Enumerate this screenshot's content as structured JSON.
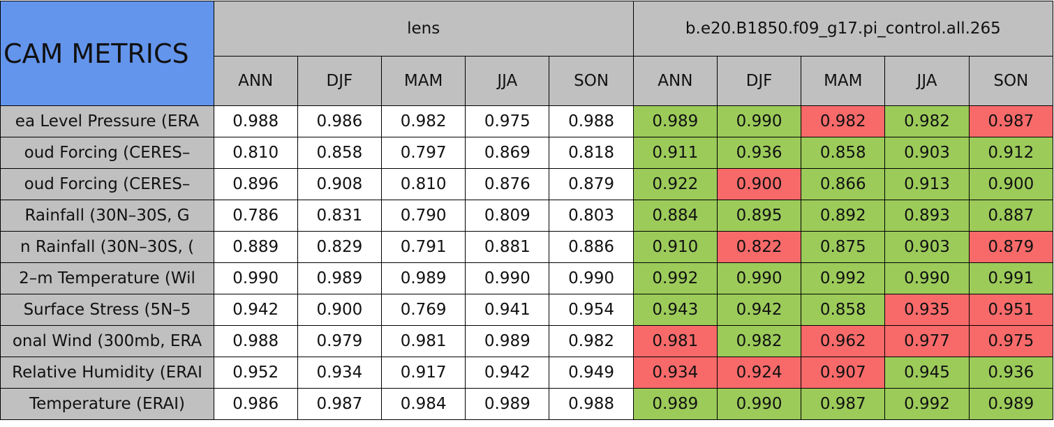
{
  "table": {
    "corner": "CAM METRICS",
    "groups": [
      "lens",
      "b.e20.B1850.f09_g17.pi_control.all.265"
    ],
    "columns": [
      "ANN",
      "DJF",
      "MAM",
      "JJA",
      "SON",
      "ANN",
      "DJF",
      "MAM",
      "JJA",
      "SON"
    ],
    "header_color": "#c0c0c0",
    "corner_color": "#6495ed",
    "rows": [
      {
        "label": "ea Level Pressure (ERA",
        "values": [
          "0.988",
          "0.986",
          "0.982",
          "0.975",
          "0.988",
          "0.989",
          "0.990",
          "0.982",
          "0.982",
          "0.987"
        ],
        "colors": [
          "#ffffff",
          "#ffffff",
          "#ffffff",
          "#ffffff",
          "#ffffff",
          "#9ccb5a",
          "#9ccb5a",
          "#f86a6a",
          "#9ccb5a",
          "#f86a6a"
        ]
      },
      {
        "label": "oud Forcing (CERES–",
        "values": [
          "0.810",
          "0.858",
          "0.797",
          "0.869",
          "0.818",
          "0.911",
          "0.936",
          "0.858",
          "0.903",
          "0.912"
        ],
        "colors": [
          "#ffffff",
          "#ffffff",
          "#ffffff",
          "#ffffff",
          "#ffffff",
          "#9ccb5a",
          "#9ccb5a",
          "#9ccb5a",
          "#9ccb5a",
          "#9ccb5a"
        ]
      },
      {
        "label": "oud Forcing (CERES–",
        "values": [
          "0.896",
          "0.908",
          "0.810",
          "0.876",
          "0.879",
          "0.922",
          "0.900",
          "0.866",
          "0.913",
          "0.900"
        ],
        "colors": [
          "#ffffff",
          "#ffffff",
          "#ffffff",
          "#ffffff",
          "#ffffff",
          "#9ccb5a",
          "#f86a6a",
          "#9ccb5a",
          "#9ccb5a",
          "#9ccb5a"
        ]
      },
      {
        "label": "Rainfall (30N–30S, G",
        "values": [
          "0.786",
          "0.831",
          "0.790",
          "0.809",
          "0.803",
          "0.884",
          "0.895",
          "0.892",
          "0.893",
          "0.887"
        ],
        "colors": [
          "#ffffff",
          "#ffffff",
          "#ffffff",
          "#ffffff",
          "#ffffff",
          "#9ccb5a",
          "#9ccb5a",
          "#9ccb5a",
          "#9ccb5a",
          "#9ccb5a"
        ]
      },
      {
        "label": "n Rainfall (30N–30S, (",
        "values": [
          "0.889",
          "0.829",
          "0.791",
          "0.881",
          "0.886",
          "0.910",
          "0.822",
          "0.875",
          "0.903",
          "0.879"
        ],
        "colors": [
          "#ffffff",
          "#ffffff",
          "#ffffff",
          "#ffffff",
          "#ffffff",
          "#9ccb5a",
          "#f86a6a",
          "#9ccb5a",
          "#9ccb5a",
          "#f86a6a"
        ]
      },
      {
        "label": "2–m Temperature (Wil",
        "values": [
          "0.990",
          "0.989",
          "0.989",
          "0.990",
          "0.990",
          "0.992",
          "0.990",
          "0.992",
          "0.990",
          "0.991"
        ],
        "colors": [
          "#ffffff",
          "#ffffff",
          "#ffffff",
          "#ffffff",
          "#ffffff",
          "#9ccb5a",
          "#9ccb5a",
          "#9ccb5a",
          "#9ccb5a",
          "#9ccb5a"
        ]
      },
      {
        "label": "Surface Stress (5N–5",
        "values": [
          "0.942",
          "0.900",
          "0.769",
          "0.941",
          "0.954",
          "0.943",
          "0.942",
          "0.858",
          "0.935",
          "0.951"
        ],
        "colors": [
          "#ffffff",
          "#ffffff",
          "#ffffff",
          "#ffffff",
          "#ffffff",
          "#9ccb5a",
          "#9ccb5a",
          "#9ccb5a",
          "#f86a6a",
          "#f86a6a"
        ]
      },
      {
        "label": "onal Wind (300mb, ERA",
        "values": [
          "0.988",
          "0.979",
          "0.981",
          "0.989",
          "0.982",
          "0.981",
          "0.982",
          "0.962",
          "0.977",
          "0.975"
        ],
        "colors": [
          "#ffffff",
          "#ffffff",
          "#ffffff",
          "#ffffff",
          "#ffffff",
          "#f86a6a",
          "#9ccb5a",
          "#f86a6a",
          "#f86a6a",
          "#f86a6a"
        ]
      },
      {
        "label": "Relative Humidity (ERAI",
        "values": [
          "0.952",
          "0.934",
          "0.917",
          "0.942",
          "0.949",
          "0.934",
          "0.924",
          "0.907",
          "0.945",
          "0.936"
        ],
        "colors": [
          "#ffffff",
          "#ffffff",
          "#ffffff",
          "#ffffff",
          "#ffffff",
          "#f86a6a",
          "#f86a6a",
          "#f86a6a",
          "#9ccb5a",
          "#9ccb5a"
        ]
      },
      {
        "label": "Temperature (ERAI)",
        "values": [
          "0.986",
          "0.987",
          "0.984",
          "0.989",
          "0.988",
          "0.989",
          "0.990",
          "0.987",
          "0.992",
          "0.989"
        ],
        "colors": [
          "#ffffff",
          "#ffffff",
          "#ffffff",
          "#ffffff",
          "#ffffff",
          "#9ccb5a",
          "#9ccb5a",
          "#9ccb5a",
          "#9ccb5a",
          "#9ccb5a"
        ]
      }
    ]
  }
}
